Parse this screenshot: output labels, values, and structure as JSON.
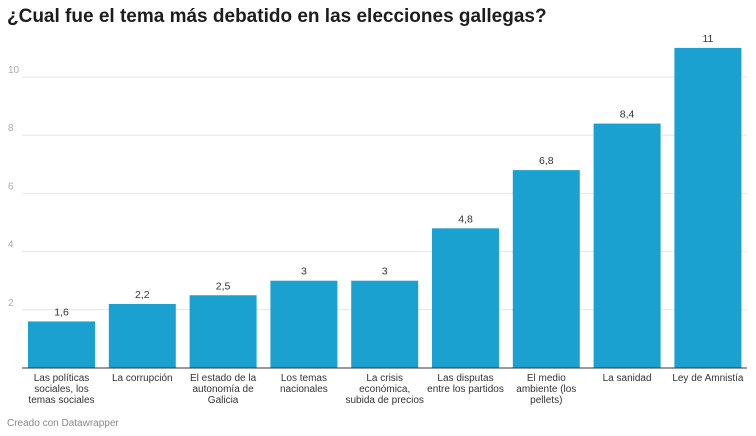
{
  "title": "¿Cual fue el tema más debatido en las elecciones gallegas?",
  "footer": "Creado con Datawrapper",
  "colors": {
    "bar": "#1ba1cf",
    "grid": "#e6e6e6",
    "axis": "#333333"
  },
  "chart_data": {
    "type": "bar",
    "title": "¿Cual fue el tema más debatido en las elecciones gallegas?",
    "categories": [
      [
        "Las políticas",
        "sociales, los",
        "temas sociales"
      ],
      [
        "La corrupción"
      ],
      [
        "El estado de la",
        "autonomía de",
        "Galicia"
      ],
      [
        "Los temas",
        "nacionales"
      ],
      [
        "La crisis",
        "económica,",
        "subida de precios"
      ],
      [
        "Las disputas",
        "entre los partidos"
      ],
      [
        "El medio",
        "ambiente (los",
        "pellets)"
      ],
      [
        "La sanidad"
      ],
      [
        "Ley de Amnistía"
      ]
    ],
    "values": [
      1.6,
      2.2,
      2.5,
      3,
      3,
      4.8,
      6.8,
      8.4,
      11
    ],
    "value_labels": [
      "1,6",
      "2,2",
      "2,5",
      "3",
      "3",
      "4,8",
      "6,8",
      "8,4",
      "11"
    ],
    "yticks": [
      2,
      4,
      6,
      8,
      10
    ],
    "ylim": [
      0,
      11
    ],
    "grid": true,
    "xlabel": "",
    "ylabel": ""
  }
}
